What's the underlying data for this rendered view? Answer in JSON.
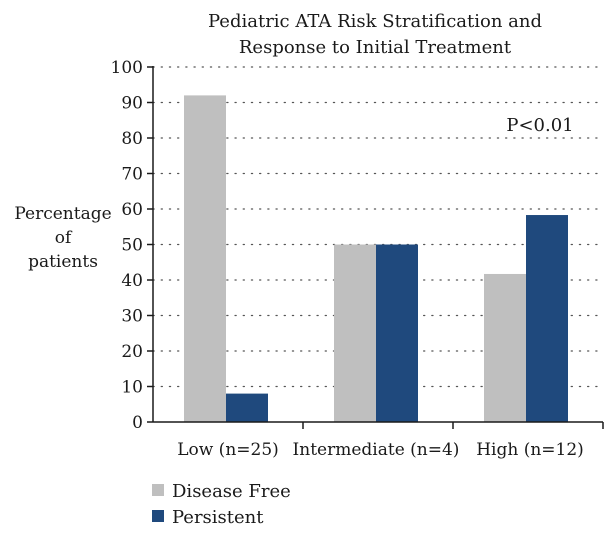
{
  "chart_data": {
    "type": "bar",
    "title_lines": [
      "Pediatric ATA Risk Stratification and",
      "Response to Initial Treatment"
    ],
    "ylabel_lines": [
      "Percentage",
      "of",
      "patients"
    ],
    "xlabel": "",
    "categories": [
      "Low (n=25)",
      "Intermediate (n=4)",
      "High (n=12)"
    ],
    "series": [
      {
        "name": "Disease Free",
        "color": "#bfbfbf",
        "values": [
          92,
          50,
          41.7
        ]
      },
      {
        "name": "Persistent",
        "color": "#1f497d",
        "values": [
          8,
          50,
          58.3
        ]
      }
    ],
    "ylim": [
      0,
      100
    ],
    "yticks": [
      0,
      10,
      20,
      30,
      40,
      50,
      60,
      70,
      80,
      90,
      100
    ],
    "grid": "dotted-horizontal",
    "annotation": "P<0.01",
    "legend_position": "bottom-left"
  }
}
